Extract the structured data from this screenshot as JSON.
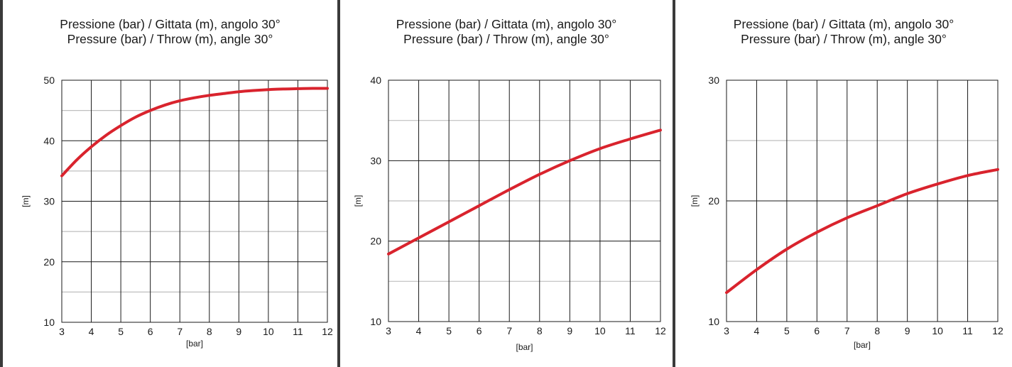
{
  "colors": {
    "curve": "#d9232d",
    "major_grid": "#1a1a1a",
    "minor_grid": "#bfbfbf",
    "divider": "#3a3a3a"
  },
  "chart_data": [
    {
      "type": "line",
      "title_line1": "Pressione (bar) / Gittata (m), angolo 30°",
      "title_line2": "Pressure (bar) / Throw (m), angle 30°",
      "xlabel": "[bar]",
      "ylabel": "[m]",
      "xlim": [
        3,
        12
      ],
      "ylim": [
        10,
        50
      ],
      "x_ticks": [
        3,
        4,
        5,
        6,
        7,
        8,
        9,
        10,
        11,
        12
      ],
      "y_ticks": [
        10,
        20,
        30,
        40,
        50
      ],
      "minor_y": [
        15,
        25,
        35,
        45
      ],
      "grid": true,
      "series": [
        {
          "x": [
            3,
            3.5,
            4,
            4.5,
            5,
            5.5,
            6,
            6.5,
            7,
            7.5,
            8,
            8.5,
            9,
            9.5,
            10,
            10.5,
            11,
            11.5,
            12
          ],
          "y": [
            34.2,
            36.8,
            39.0,
            40.9,
            42.5,
            43.9,
            45.0,
            45.9,
            46.6,
            47.1,
            47.5,
            47.8,
            48.1,
            48.3,
            48.45,
            48.55,
            48.6,
            48.65,
            48.65
          ]
        }
      ]
    },
    {
      "type": "line",
      "title_line1": "Pressione (bar) / Gittata (m), angolo 30°",
      "title_line2": "Pressure (bar) / Throw (m), angle 30°",
      "xlabel": "[bar]",
      "ylabel": "[m]",
      "xlim": [
        3,
        12
      ],
      "ylim": [
        10,
        40
      ],
      "x_ticks": [
        3,
        4,
        5,
        6,
        7,
        8,
        9,
        10,
        11,
        12
      ],
      "y_ticks": [
        10,
        20,
        30,
        40
      ],
      "minor_y": [
        15,
        25,
        35
      ],
      "grid": true,
      "series": [
        {
          "x": [
            3,
            4,
            5,
            6,
            7,
            8,
            9,
            10,
            11,
            12
          ],
          "y": [
            18.4,
            20.4,
            22.4,
            24.4,
            26.4,
            28.3,
            30.0,
            31.5,
            32.7,
            33.8
          ]
        }
      ]
    },
    {
      "type": "line",
      "title_line1": "Pressione (bar) / Gittata (m), angolo 30°",
      "title_line2": "Pressure (bar) / Throw (m), angle 30°",
      "xlabel": "[bar]",
      "ylabel": "[m]",
      "xlim": [
        3,
        12
      ],
      "ylim": [
        10,
        30
      ],
      "x_ticks": [
        3,
        4,
        5,
        6,
        7,
        8,
        9,
        10,
        11,
        12
      ],
      "y_ticks": [
        10,
        20,
        30
      ],
      "minor_y": [
        15,
        25
      ],
      "grid": true,
      "series": [
        {
          "x": [
            3,
            4,
            5,
            6,
            7,
            8,
            9,
            10,
            11,
            12
          ],
          "y": [
            12.4,
            14.3,
            16.0,
            17.4,
            18.6,
            19.6,
            20.6,
            21.4,
            22.1,
            22.6
          ]
        }
      ]
    }
  ]
}
